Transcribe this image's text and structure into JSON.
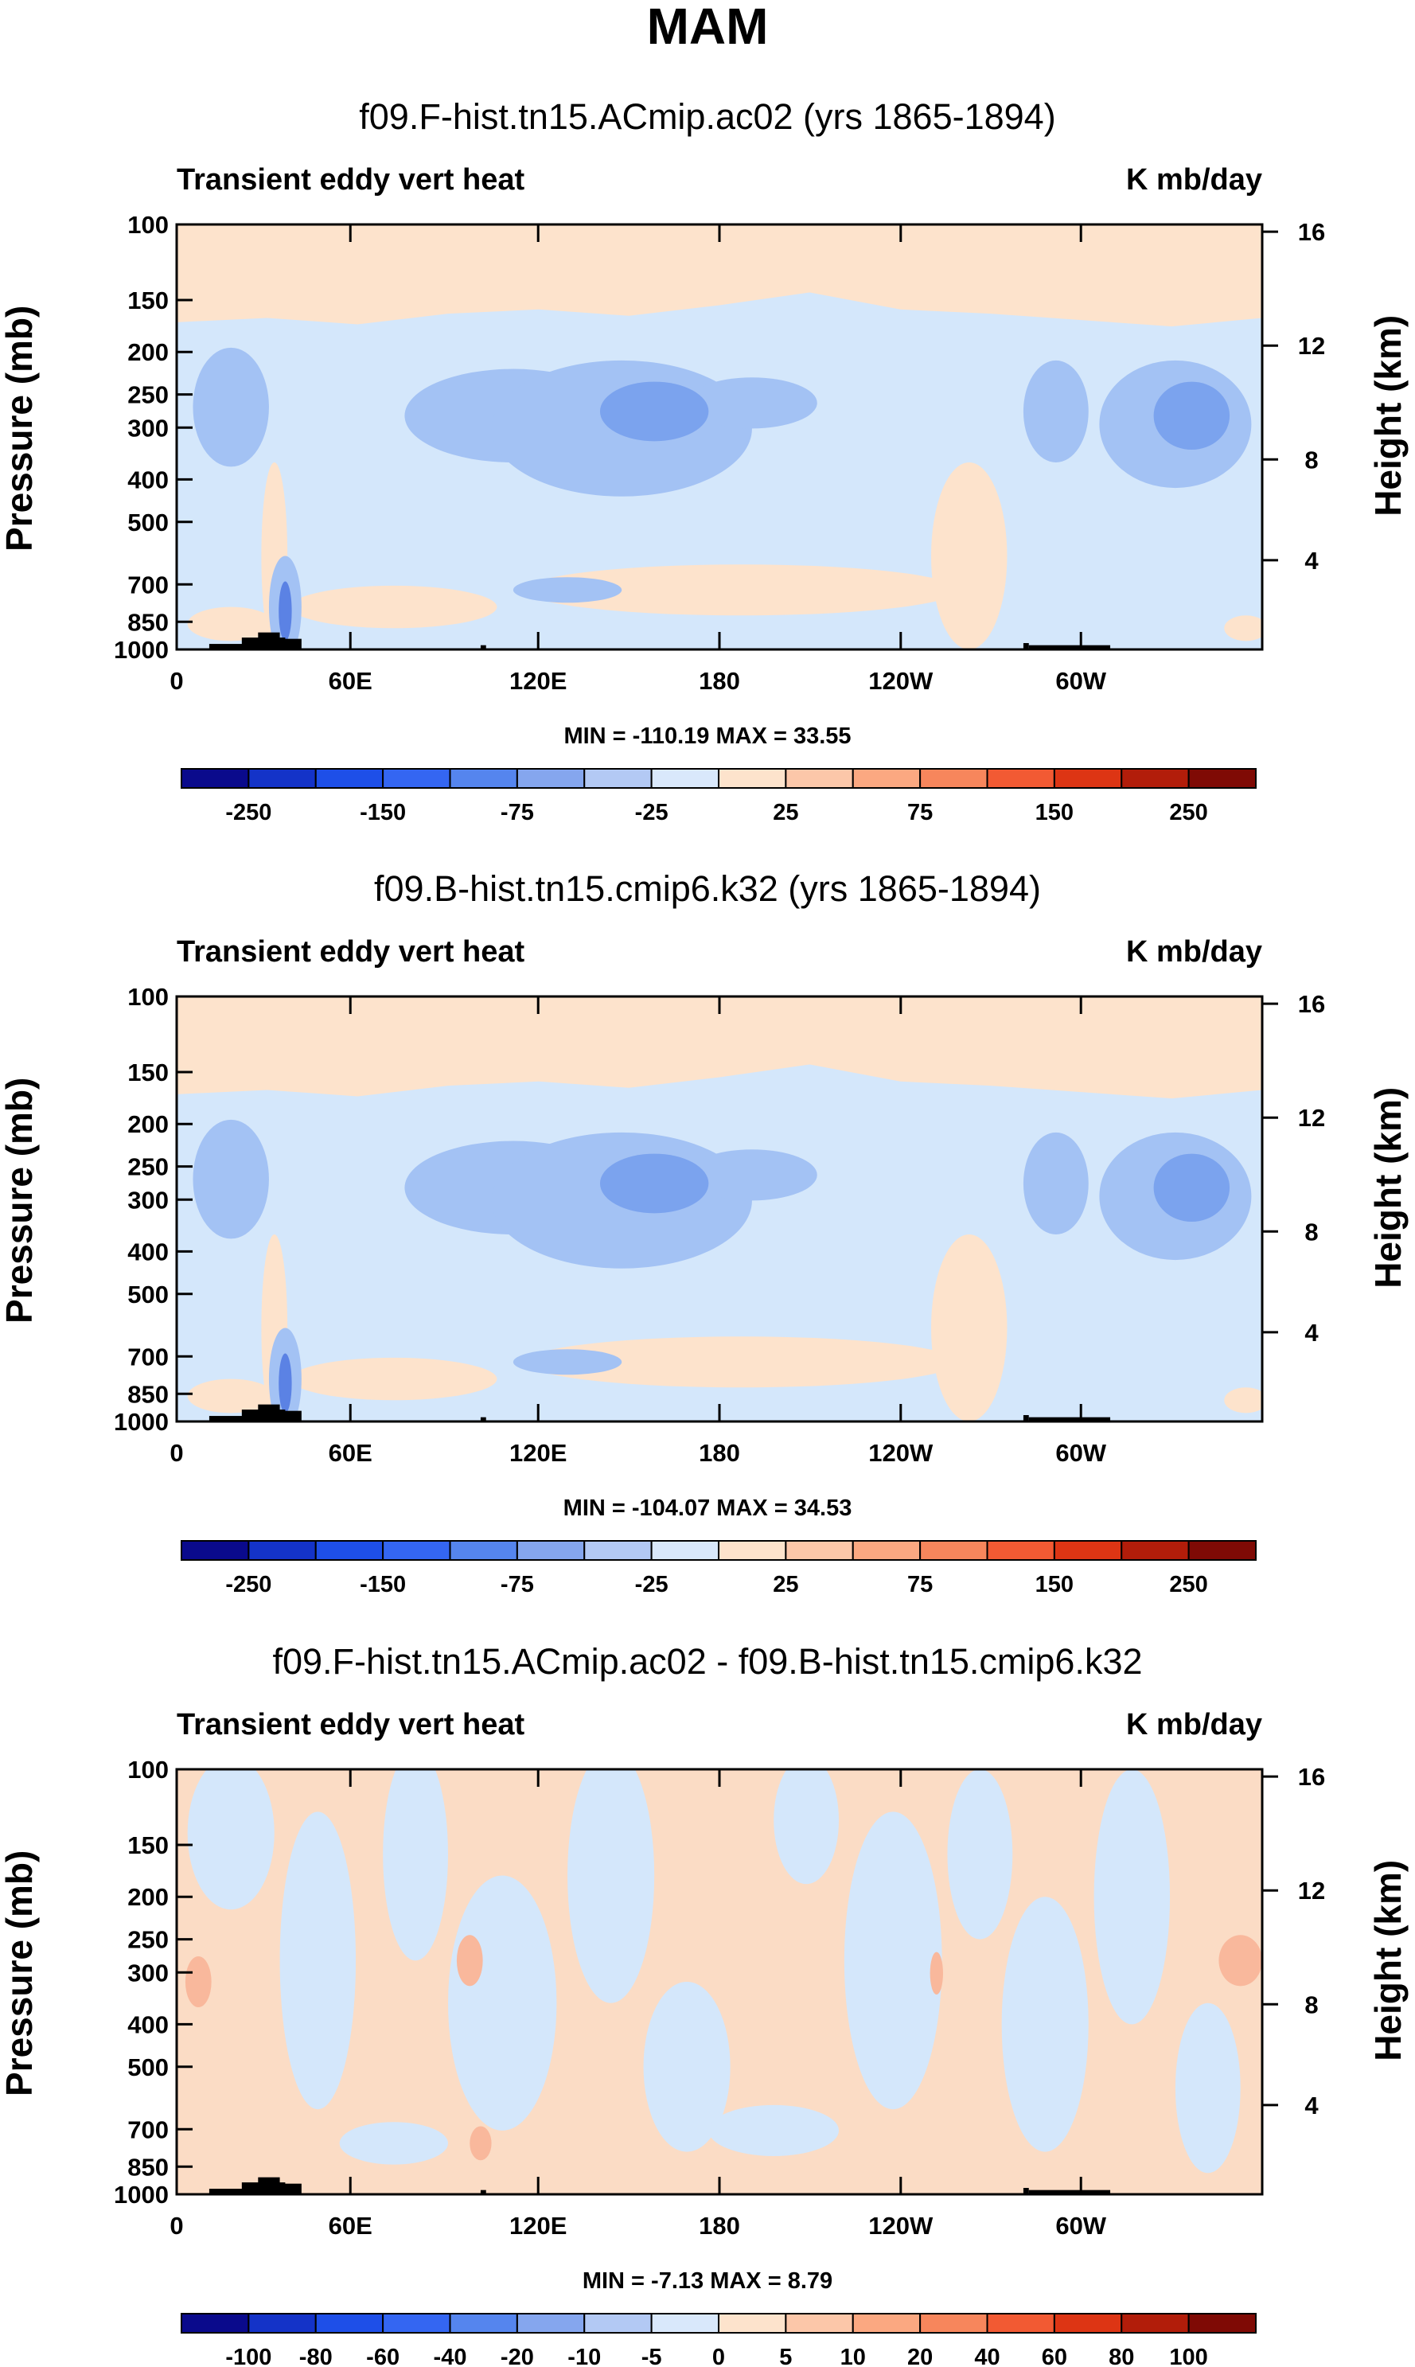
{
  "main_title": "MAM",
  "colors": {
    "fill_pos": "#fde3cc",
    "fill_neg1": "#d4e7fb",
    "fill_neg2": "#a3c2f4",
    "fill_neg3": "#7ba3ee",
    "fill_neg4": "#5b82e4",
    "fill_diff_pos": "#fbdcc5",
    "fill_diff_pos2": "#f9b89c",
    "topo": "#000000",
    "colorbar": [
      "#0a0a8c",
      "#1433c8",
      "#1e4fe8",
      "#3466f2",
      "#5585ee",
      "#85a6ee",
      "#b3c9f4",
      "#d9e8fb",
      "#fde3cc",
      "#fcc7a9",
      "#fba881",
      "#f7865c",
      "#f25a33",
      "#dd3514",
      "#b21d0a",
      "#7f0a05"
    ]
  },
  "chart_data": [
    {
      "type": "heatmap",
      "title": "f09.F-hist.tn15.ACmip.ac02 (yrs 1865-1894)",
      "left_label": "Transient eddy vert heat",
      "units": "K mb/day",
      "ylabel": "Pressure (mb)",
      "ylabel_right": "Height (km)",
      "x_ticks": [
        "0",
        "60E",
        "120E",
        "180",
        "120W",
        "60W"
      ],
      "y_ticks": [
        "100",
        "150",
        "200",
        "250",
        "300",
        "400",
        "500",
        "700",
        "850",
        "1000"
      ],
      "y_ticks_right": [
        "16",
        "12",
        "8",
        "4"
      ],
      "stats": "MIN = -110.19  MAX =  33.55",
      "colorbar_labels": [
        "-250",
        "-150",
        "-75",
        "-25",
        "25",
        "75",
        "150",
        "250"
      ],
      "variant": "mean"
    },
    {
      "type": "heatmap",
      "title": "f09.B-hist.tn15.cmip6.k32 (yrs 1865-1894)",
      "left_label": "Transient eddy vert heat",
      "units": "K mb/day",
      "ylabel": "Pressure (mb)",
      "ylabel_right": "Height (km)",
      "x_ticks": [
        "0",
        "60E",
        "120E",
        "180",
        "120W",
        "60W"
      ],
      "y_ticks": [
        "100",
        "150",
        "200",
        "250",
        "300",
        "400",
        "500",
        "700",
        "850",
        "1000"
      ],
      "y_ticks_right": [
        "16",
        "12",
        "8",
        "4"
      ],
      "stats": "MIN = -104.07  MAX =  34.53",
      "colorbar_labels": [
        "-250",
        "-150",
        "-75",
        "-25",
        "25",
        "75",
        "150",
        "250"
      ],
      "variant": "mean"
    },
    {
      "type": "heatmap",
      "title": "f09.F-hist.tn15.ACmip.ac02 - f09.B-hist.tn15.cmip6.k32",
      "left_label": "Transient eddy vert heat",
      "units": "K mb/day",
      "ylabel": "Pressure (mb)",
      "ylabel_right": "Height (km)",
      "x_ticks": [
        "0",
        "60E",
        "120E",
        "180",
        "120W",
        "60W"
      ],
      "y_ticks": [
        "100",
        "150",
        "200",
        "250",
        "300",
        "400",
        "500",
        "700",
        "850",
        "1000"
      ],
      "y_ticks_right": [
        "16",
        "12",
        "8",
        "4"
      ],
      "stats": "MIN =  -7.13  MAX =   8.79",
      "colorbar_labels": [
        "-100",
        "-80",
        "-60",
        "-40",
        "-20",
        "-10",
        "-5",
        "0",
        "5",
        "10",
        "20",
        "40",
        "60",
        "80",
        "100"
      ],
      "variant": "diff"
    }
  ]
}
